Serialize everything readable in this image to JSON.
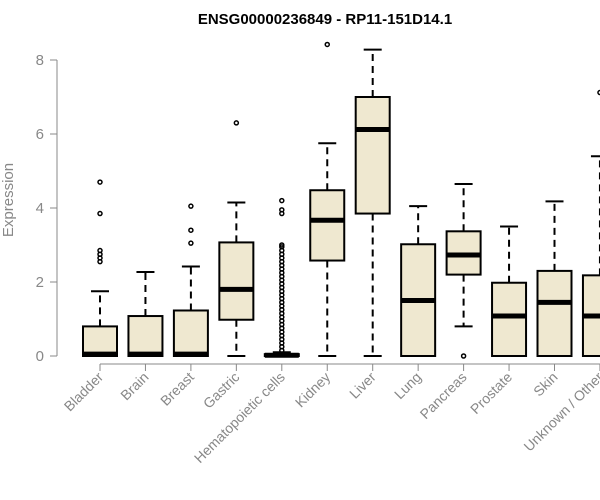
{
  "chart_data": {
    "type": "boxplot",
    "title": "ENSG00000236849 - RP11-151D14.1",
    "ylabel": "Expression",
    "xlabel": "",
    "ylim": [
      0,
      8.5
    ],
    "yticks": [
      0,
      2,
      4,
      6,
      8
    ],
    "colors": {
      "box_fill": "#efe8d0",
      "stroke": "#000000",
      "axis": "#888888"
    },
    "categories": [
      "Bladder",
      "Brain",
      "Breast",
      "Gastric",
      "Hematopoietic cells",
      "Kidney",
      "Liver",
      "Lung",
      "Pancreas",
      "Prostate",
      "Skin",
      "Unknown / Other"
    ],
    "boxes": [
      {
        "category": "Bladder",
        "q1": 0,
        "median": 0.05,
        "q3": 0.8,
        "whisker_low": 0,
        "whisker_high": 1.75,
        "outliers": [
          2.55,
          2.65,
          2.75,
          2.85,
          3.85,
          4.7
        ]
      },
      {
        "category": "Brain",
        "q1": 0,
        "median": 0.05,
        "q3": 1.08,
        "whisker_low": 0,
        "whisker_high": 2.27,
        "outliers": []
      },
      {
        "category": "Breast",
        "q1": 0,
        "median": 0.05,
        "q3": 1.23,
        "whisker_low": 0,
        "whisker_high": 2.42,
        "outliers": [
          3.05,
          3.4,
          4.05
        ]
      },
      {
        "category": "Gastric",
        "q1": 0.98,
        "median": 1.8,
        "q3": 3.07,
        "whisker_low": 0,
        "whisker_high": 4.15,
        "outliers": [
          6.3
        ]
      },
      {
        "category": "Hematopoietic cells",
        "q1": 0,
        "median": 0.02,
        "q3": 0.05,
        "whisker_low": 0,
        "whisker_high": 0.1,
        "outliers": [
          0.15,
          0.25,
          0.35,
          0.45,
          0.55,
          0.65,
          0.75,
          0.85,
          0.95,
          1.05,
          1.15,
          1.25,
          1.35,
          1.45,
          1.55,
          1.65,
          1.75,
          1.85,
          1.95,
          2.05,
          2.15,
          2.25,
          2.35,
          2.45,
          2.55,
          2.65,
          2.75,
          2.85,
          2.95,
          3.0,
          3.85,
          3.95,
          4.2
        ]
      },
      {
        "category": "Kidney",
        "q1": 2.58,
        "median": 3.67,
        "q3": 4.48,
        "whisker_low": 0,
        "whisker_high": 5.75,
        "outliers": [
          8.42
        ]
      },
      {
        "category": "Liver",
        "q1": 3.85,
        "median": 6.12,
        "q3": 7.0,
        "whisker_low": 0,
        "whisker_high": 8.28,
        "outliers": []
      },
      {
        "category": "Lung",
        "q1": 0,
        "median": 1.5,
        "q3": 3.02,
        "whisker_low": 0,
        "whisker_high": 4.05,
        "outliers": []
      },
      {
        "category": "Pancreas",
        "q1": 2.2,
        "median": 2.73,
        "q3": 3.37,
        "whisker_low": 0.8,
        "whisker_high": 4.65,
        "outliers": [
          0.0
        ]
      },
      {
        "category": "Prostate",
        "q1": 0,
        "median": 1.08,
        "q3": 1.98,
        "whisker_low": 0,
        "whisker_high": 3.5,
        "outliers": []
      },
      {
        "category": "Skin",
        "q1": 0,
        "median": 1.45,
        "q3": 2.3,
        "whisker_low": 0,
        "whisker_high": 4.18,
        "outliers": []
      },
      {
        "category": "Unknown / Other",
        "q1": 0,
        "median": 1.08,
        "q3": 2.18,
        "whisker_low": 0,
        "whisker_high": 5.4,
        "outliers": [
          7.12
        ]
      }
    ],
    "grid": false,
    "legend": "none"
  }
}
